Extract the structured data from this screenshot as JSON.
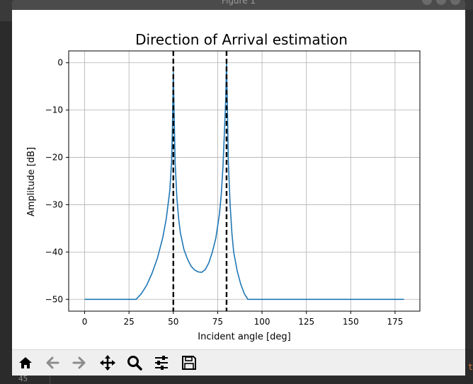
{
  "window": {
    "title": "Figure 1"
  },
  "background": {
    "line_number": "45",
    "edge_text": "t"
  },
  "chart_data": {
    "type": "line",
    "title": "Direction of Arrival estimation",
    "xlabel": "Incident angle [deg]",
    "ylabel": "Amplitude [dB]",
    "xlim": [
      -9,
      189
    ],
    "ylim": [
      -52.5,
      2.5
    ],
    "xticks": [
      0,
      25,
      50,
      75,
      100,
      125,
      150,
      175
    ],
    "yticks": [
      0,
      -10,
      -20,
      -30,
      -40,
      -50
    ],
    "xtick_labels": [
      "0",
      "25",
      "50",
      "75",
      "100",
      "125",
      "150",
      "175"
    ],
    "ytick_labels": [
      "0",
      "−10",
      "−20",
      "−30",
      "−40",
      "−50"
    ],
    "grid": true,
    "line_color": "#1f77b4",
    "series": [
      {
        "x": [
          0,
          10,
          20,
          29,
          32,
          35,
          38,
          41,
          44,
          46,
          48,
          49,
          49.5,
          50,
          50.5,
          51,
          52,
          53,
          54,
          56,
          58,
          60,
          62,
          64,
          66,
          68,
          70,
          72,
          74,
          76,
          77,
          78,
          79,
          79.5,
          80,
          80.5,
          81,
          82,
          83,
          84,
          86,
          88,
          90,
          92,
          94,
          100,
          120,
          140,
          160,
          180
        ],
        "values": [
          -50,
          -50,
          -50,
          -50,
          -48.8,
          -47,
          -44.5,
          -41.3,
          -37,
          -33,
          -27,
          -21,
          -14,
          -2,
          -12,
          -21,
          -28.5,
          -33,
          -36,
          -39.5,
          -41.5,
          -43,
          -43.8,
          -44.2,
          -44.3,
          -43.7,
          -42.3,
          -40,
          -37,
          -32,
          -28,
          -22,
          -13,
          -8,
          0,
          -10,
          -21,
          -30,
          -36,
          -40,
          -44,
          -46.8,
          -48.8,
          -50,
          -50,
          -50,
          -50,
          -50,
          -50,
          -50
        ]
      }
    ],
    "vlines": [
      {
        "x": 50,
        "style": "dashed",
        "color": "#000000"
      },
      {
        "x": 80,
        "style": "dashed",
        "color": "#000000"
      }
    ]
  },
  "toolbar": [
    {
      "name": "home-button",
      "icon": "home-icon"
    },
    {
      "name": "back-button",
      "icon": "arrow-left-icon"
    },
    {
      "name": "forward-button",
      "icon": "arrow-right-icon"
    },
    {
      "name": "pan-button",
      "icon": "move-icon"
    },
    {
      "name": "zoom-button",
      "icon": "magnifier-icon"
    },
    {
      "name": "configure-subplots-button",
      "icon": "sliders-icon"
    },
    {
      "name": "save-button",
      "icon": "floppy-disk-icon"
    }
  ]
}
